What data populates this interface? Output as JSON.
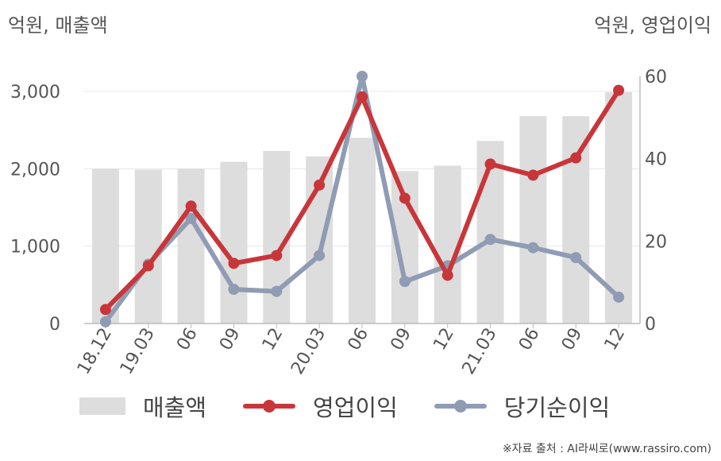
{
  "units": {
    "left": "억원, 매출액",
    "right": "억원, 영업이익"
  },
  "legend": {
    "bar_label": "매출액",
    "op_label": "영업이익",
    "net_label": "당기순이익"
  },
  "source": "※자료 출처 : AI라씨로(www.rassiro.com)",
  "colors": {
    "bar": "#dddddd",
    "op": "#c8363a",
    "net": "#909cb4",
    "axis": "#bbbbbb",
    "grid": "#e8e8e8",
    "tick": "#555555"
  },
  "chart_data": {
    "type": "bar+line",
    "categories": [
      "18.12",
      "19.03",
      "06",
      "09",
      "12",
      "20.03",
      "06",
      "09",
      "12",
      "21.03",
      "06",
      "09",
      "12"
    ],
    "y_left": {
      "ticks": [
        "0",
        "1,000",
        "2,000",
        "3,000"
      ],
      "tick_values": [
        0,
        1000,
        2000,
        3000
      ],
      "ylim": [
        0,
        3000
      ],
      "label": "억원, 매출액"
    },
    "y_right": {
      "ticks": [
        "0",
        "20",
        "40",
        "60"
      ],
      "tick_values": [
        0,
        20,
        40,
        60
      ],
      "ylim": [
        0,
        60
      ],
      "label": "억원, 영업이익"
    },
    "grid": true,
    "legend_position": "bottom",
    "series": [
      {
        "name": "매출액",
        "type": "bar",
        "axis": "left",
        "values": [
          2000,
          1990,
          2000,
          2090,
          2230,
          2160,
          2400,
          1970,
          2040,
          2360,
          2680,
          2680,
          2990
        ]
      },
      {
        "name": "영업이익",
        "type": "line",
        "axis": "right",
        "values": [
          3.4,
          14.0,
          28.5,
          14.6,
          16.5,
          33.6,
          55.0,
          30.4,
          11.7,
          38.7,
          36.0,
          40.2,
          56.6
        ]
      },
      {
        "name": "당기순이익",
        "type": "line",
        "axis": "right",
        "values": [
          0.4,
          14.4,
          25.5,
          8.3,
          7.8,
          16.5,
          60.0,
          10.2,
          14.0,
          20.4,
          18.4,
          16.0,
          6.4
        ]
      }
    ]
  }
}
